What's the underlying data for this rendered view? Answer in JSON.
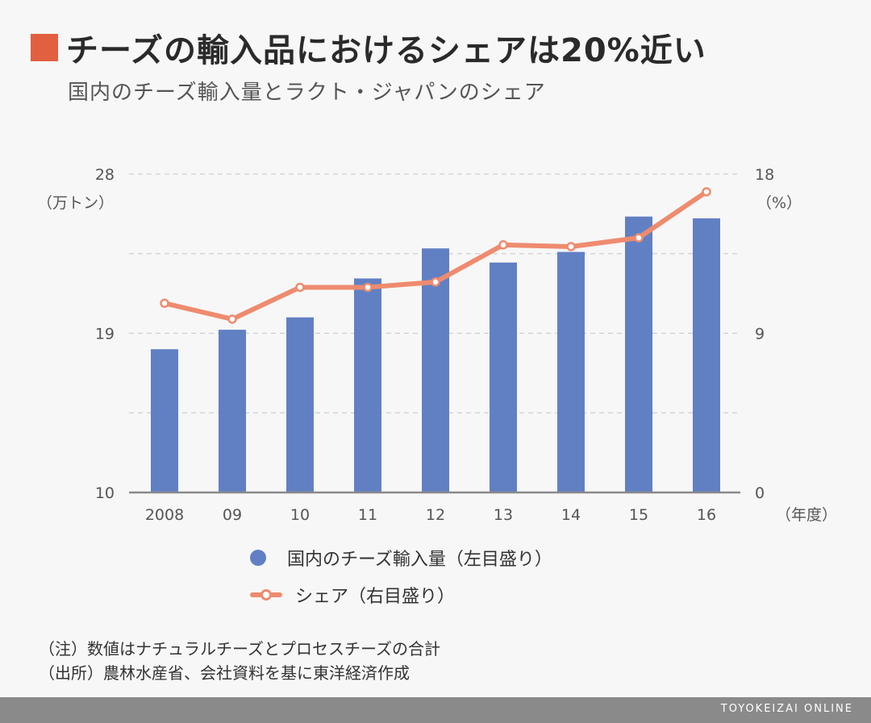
{
  "header": {
    "title": "チーズの輸入品におけるシェアは20%近い",
    "subtitle": "国内のチーズ輸入量とラクト・ジャパンのシェア",
    "accent_color": "#e2603f"
  },
  "chart_data": {
    "type": "bar",
    "categories": [
      "2008",
      "09",
      "10",
      "11",
      "12",
      "13",
      "14",
      "15",
      "16"
    ],
    "series": [
      {
        "name": "国内のチーズ輸入量（左目盛り）",
        "type": "bar",
        "axis": "left",
        "color": "#6180c4",
        "values": [
          18.1,
          19.2,
          19.9,
          22.1,
          23.8,
          23.0,
          23.6,
          25.6,
          25.5
        ]
      },
      {
        "name": "シェア（右目盛り）",
        "type": "line",
        "axis": "right",
        "color": "#ee8b6f",
        "values": [
          10.7,
          9.8,
          11.6,
          11.6,
          11.9,
          14.0,
          13.9,
          14.4,
          17.0
        ]
      }
    ],
    "left_axis": {
      "ticks": [
        "28",
        "19",
        "10"
      ],
      "ylim": [
        10,
        28
      ],
      "unit": "（万トン）"
    },
    "right_axis": {
      "ticks": [
        "18",
        "9",
        "0"
      ],
      "ylim": [
        0,
        18
      ],
      "unit": "（%）"
    },
    "x_unit": "（年度）",
    "grid": true,
    "legend_position": "bottom"
  },
  "notes": [
    "（注）数値はナチュラルチーズとプロセスチーズの合計",
    "（出所）農林水産省、会社資料を基に東洋経済作成"
  ],
  "footer": {
    "brand": "TOYOKEIZAI ONLINE"
  }
}
